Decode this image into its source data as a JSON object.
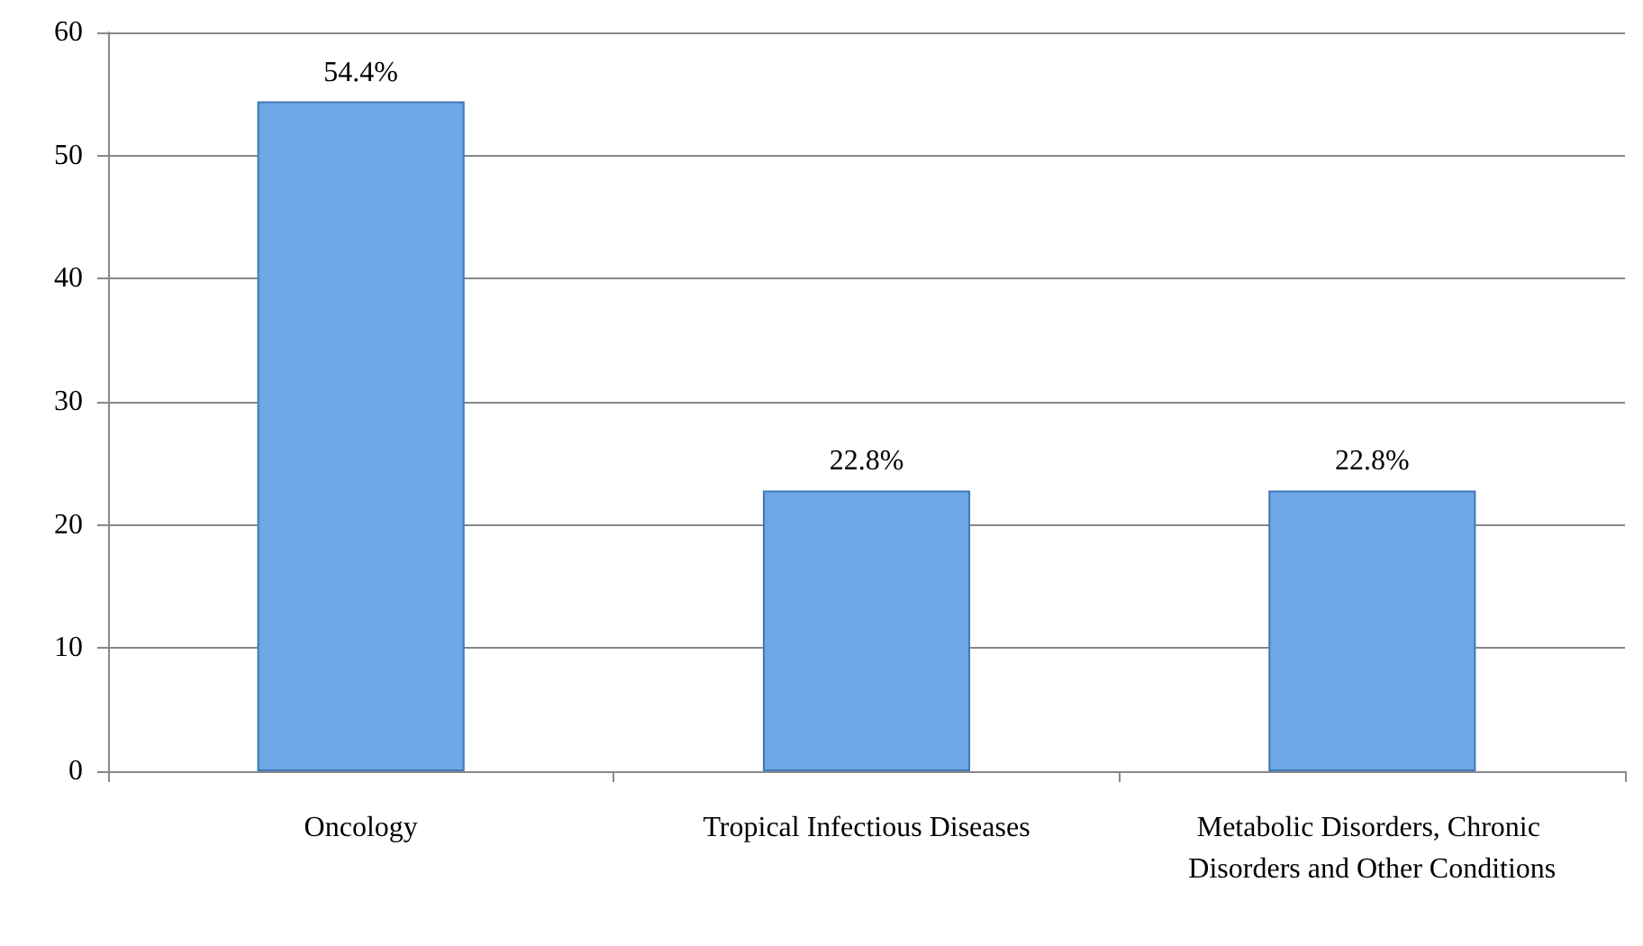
{
  "chart_data": {
    "type": "bar",
    "categories": [
      "Oncology",
      "Tropical Infectious Diseases",
      "Metabolic Disorders, Chronic Disorders and Other Conditions"
    ],
    "values": [
      54.4,
      22.8,
      22.8
    ],
    "value_labels": [
      "54.4%",
      "22.8%",
      "22.8%"
    ],
    "color": "#6fa6e6",
    "ylim": [
      0,
      60
    ],
    "yticks": [
      0,
      10,
      20,
      30,
      40,
      50,
      60
    ],
    "grid": "y"
  }
}
